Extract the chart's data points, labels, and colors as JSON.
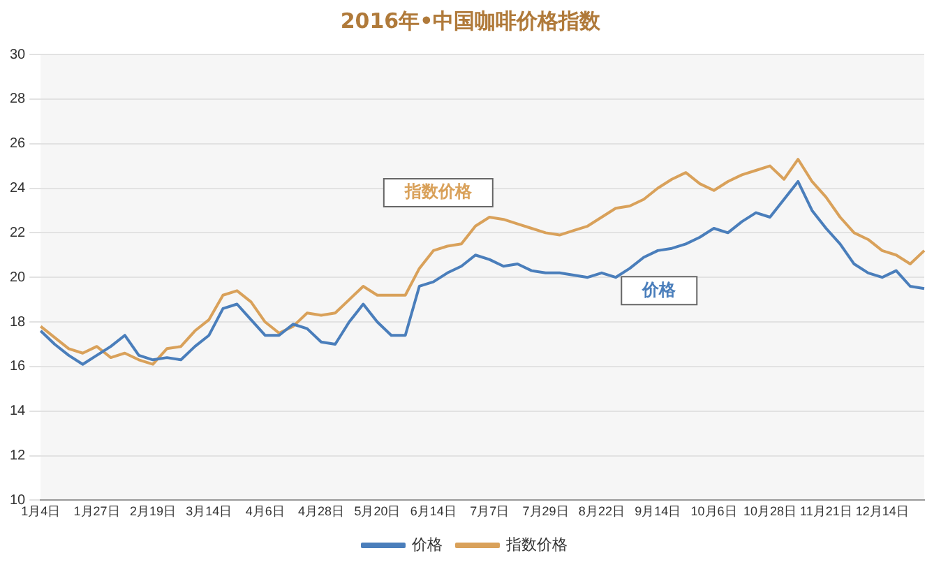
{
  "chart_data": {
    "type": "line",
    "title": "2016年•中国咖啡价格指数",
    "categories": [
      "1月4日",
      null,
      null,
      null,
      "1月27日",
      null,
      null,
      null,
      "2月19日",
      null,
      null,
      null,
      "3月14日",
      null,
      null,
      null,
      "4月6日",
      null,
      null,
      null,
      "4月28日",
      null,
      null,
      null,
      "5月20日",
      null,
      null,
      null,
      "6月14日",
      null,
      null,
      null,
      "7月7日",
      null,
      null,
      null,
      "7月29日",
      null,
      null,
      null,
      "8月22日",
      null,
      null,
      null,
      "9月14日",
      null,
      null,
      null,
      "10月6日",
      null,
      null,
      null,
      "10月28日",
      null,
      null,
      null,
      "11月21日",
      null,
      null,
      null,
      "12月14日",
      null,
      null,
      null
    ],
    "series": [
      {
        "name": "价格",
        "color": "#4a7ebb",
        "values": [
          17.6,
          17.0,
          16.5,
          16.1,
          16.5,
          16.9,
          17.4,
          16.5,
          16.3,
          16.4,
          16.3,
          16.9,
          17.4,
          18.6,
          18.8,
          18.1,
          17.4,
          17.4,
          17.9,
          17.7,
          17.1,
          17.0,
          18.0,
          18.8,
          18.0,
          17.4,
          17.4,
          19.6,
          19.8,
          20.2,
          20.5,
          21.0,
          20.8,
          20.5,
          20.6,
          20.3,
          20.2,
          20.2,
          20.1,
          20.0,
          20.2,
          20.0,
          20.4,
          20.9,
          21.2,
          21.3,
          21.5,
          21.8,
          22.2,
          22.0,
          22.5,
          22.9,
          22.7,
          23.5,
          24.3,
          23.0,
          22.2,
          21.5,
          20.6,
          20.2,
          20.0,
          20.3,
          19.6,
          19.5
        ]
      },
      {
        "name": "指数价格",
        "color": "#d9a15a",
        "values": [
          17.8,
          17.3,
          16.8,
          16.6,
          16.9,
          16.4,
          16.6,
          16.3,
          16.1,
          16.8,
          16.9,
          17.6,
          18.1,
          19.2,
          19.4,
          18.9,
          18.0,
          17.5,
          17.8,
          18.4,
          18.3,
          18.4,
          19.0,
          19.6,
          19.2,
          19.2,
          19.2,
          20.4,
          21.2,
          21.4,
          21.5,
          22.3,
          22.7,
          22.6,
          22.4,
          22.2,
          22.0,
          21.9,
          22.1,
          22.3,
          22.7,
          23.1,
          23.2,
          23.5,
          24.0,
          24.4,
          24.7,
          24.2,
          23.9,
          24.3,
          24.6,
          24.8,
          25.0,
          24.4,
          25.3,
          24.3,
          23.6,
          22.7,
          22.0,
          21.7,
          21.2,
          21.0,
          20.6,
          21.2
        ]
      }
    ],
    "ylim": [
      10,
      30
    ],
    "yticks": [
      10,
      12,
      14,
      16,
      18,
      20,
      22,
      24,
      26,
      28,
      30
    ],
    "grid": "y",
    "legend": "bottom",
    "marker": "none",
    "line_style": "solid",
    "annotations": [
      "指数价格",
      "价格"
    ]
  }
}
